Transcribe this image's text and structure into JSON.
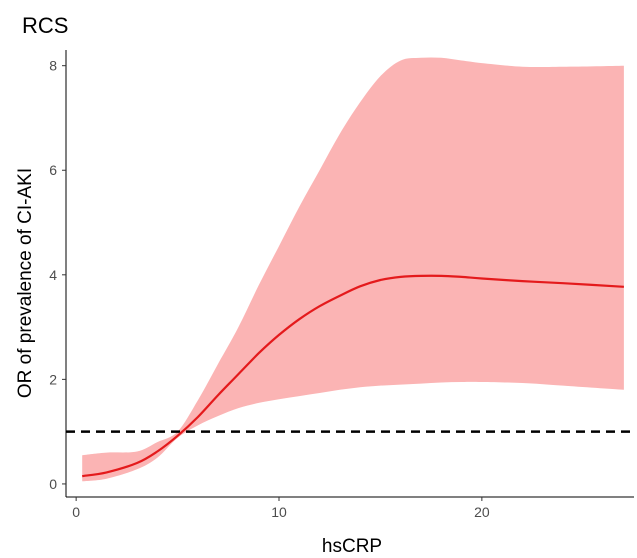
{
  "chart_data": {
    "type": "line",
    "title": "RCS",
    "xlabel": "hsCRP",
    "ylabel": "OR of prevalence of CI-AKI",
    "xlim": [
      -0.5,
      27.5
    ],
    "ylim": [
      -0.25,
      8.3
    ],
    "x_ticks": [
      0,
      10,
      20
    ],
    "y_ticks": [
      0,
      2,
      4,
      6,
      8
    ],
    "grid": false,
    "reference_line": {
      "y": 1,
      "style": "dashed",
      "color": "#000000"
    },
    "series": [
      {
        "x": [
          0.3,
          1.5,
          3,
          4,
          5,
          6,
          7,
          8,
          9,
          10,
          11,
          12,
          13,
          14,
          15,
          16,
          17,
          18,
          19,
          20,
          22,
          24,
          27
        ],
        "values": [
          0.15,
          0.22,
          0.4,
          0.62,
          0.92,
          1.28,
          1.7,
          2.1,
          2.5,
          2.85,
          3.15,
          3.4,
          3.6,
          3.78,
          3.9,
          3.96,
          3.98,
          3.98,
          3.96,
          3.93,
          3.88,
          3.84,
          3.77
        ],
        "lower": [
          0.05,
          0.1,
          0.28,
          0.5,
          0.88,
          1.12,
          1.3,
          1.45,
          1.55,
          1.62,
          1.68,
          1.74,
          1.8,
          1.85,
          1.88,
          1.9,
          1.92,
          1.94,
          1.95,
          1.95,
          1.93,
          1.88,
          1.8
        ],
        "upper": [
          0.55,
          0.6,
          0.62,
          0.8,
          1.0,
          1.6,
          2.3,
          3.0,
          3.8,
          4.55,
          5.3,
          6.0,
          6.7,
          7.3,
          7.8,
          8.1,
          8.15,
          8.15,
          8.1,
          8.05,
          7.98,
          7.98,
          8.0
        ],
        "color": "#e41a1c",
        "band_color": "#fbb4b4"
      }
    ]
  }
}
